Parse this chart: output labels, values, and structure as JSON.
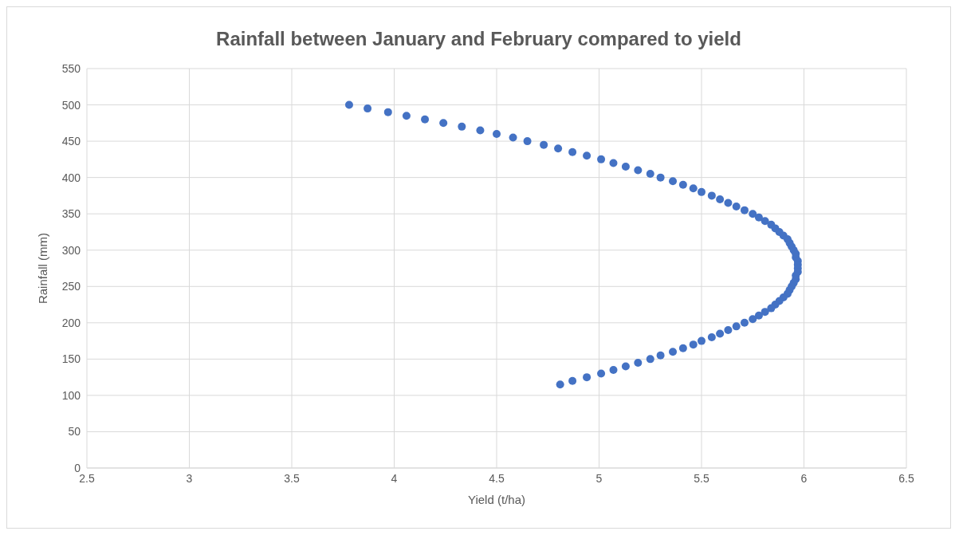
{
  "chart_data": {
    "type": "scatter",
    "title": "Rainfall between January and February compared to yield",
    "xlabel": "Yield (t/ha)",
    "ylabel": "Rainfall (mm)",
    "x": [
      3.78,
      3.87,
      3.97,
      4.06,
      4.15,
      4.24,
      4.33,
      4.42,
      4.5,
      4.58,
      4.65,
      4.73,
      4.8,
      4.87,
      4.94,
      5.01,
      5.07,
      5.13,
      5.19,
      5.25,
      5.3,
      5.36,
      5.41,
      5.46,
      5.5,
      5.55,
      5.59,
      5.63,
      5.67,
      5.71,
      5.75,
      5.78,
      5.81,
      5.84,
      5.86,
      5.88,
      5.9,
      5.92,
      5.93,
      5.94,
      5.95,
      5.96,
      5.96,
      5.97,
      5.97,
      5.97,
      5.97,
      5.96,
      5.96,
      5.95,
      5.94,
      5.93,
      5.92,
      5.9,
      5.88,
      5.86,
      5.84,
      5.81,
      5.78,
      5.75,
      5.71,
      5.67,
      5.63,
      5.59,
      5.55,
      5.5,
      5.46,
      5.41,
      5.36,
      5.3,
      5.25,
      5.19,
      5.13,
      5.07,
      5.01,
      4.94,
      4.87,
      4.81
    ],
    "values": [
      500,
      495,
      490,
      485,
      480,
      475,
      470,
      465,
      460,
      455,
      450,
      445,
      440,
      435,
      430,
      425,
      420,
      415,
      410,
      405,
      400,
      395,
      390,
      385,
      380,
      375,
      370,
      365,
      360,
      355,
      350,
      345,
      340,
      335,
      330,
      325,
      320,
      315,
      310,
      305,
      300,
      295,
      290,
      285,
      280,
      275,
      270,
      265,
      260,
      255,
      250,
      245,
      240,
      235,
      230,
      225,
      220,
      215,
      210,
      205,
      200,
      195,
      190,
      185,
      180,
      175,
      170,
      165,
      160,
      155,
      150,
      145,
      140,
      135,
      130,
      125,
      120,
      115
    ],
    "color": "#4472c4",
    "marker": "circle",
    "xlim": [
      2.5,
      6.5
    ],
    "xticks": [
      2.5,
      3,
      3.5,
      4,
      4.5,
      5,
      5.5,
      6,
      6.5
    ],
    "ylim": [
      0,
      550
    ],
    "yticks": [
      0,
      50,
      100,
      150,
      200,
      250,
      300,
      350,
      400,
      450,
      500,
      550
    ],
    "grid": true
  }
}
